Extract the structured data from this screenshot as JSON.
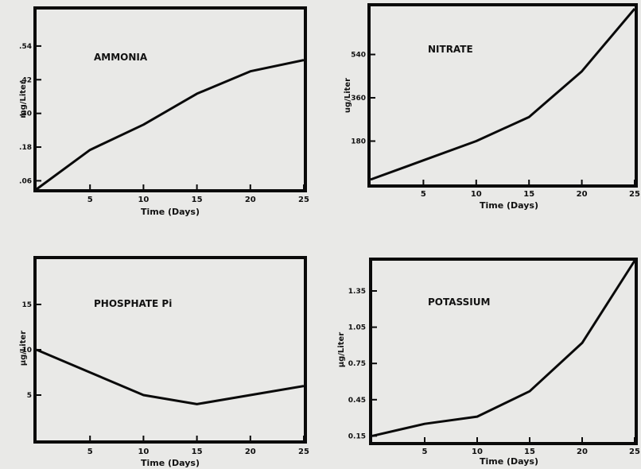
{
  "chart_data": [
    {
      "type": "line",
      "title": "AMMONIA",
      "xlabel": "Time (Days)",
      "ylabel": "mg/Liter",
      "x_ticks": [
        5,
        10,
        15,
        20,
        25
      ],
      "y_ticks": [
        ".06",
        ".18",
        ".30",
        ".42",
        ".54"
      ],
      "xlim": [
        0,
        25
      ],
      "ylim": [
        0.03,
        0.67
      ],
      "x": [
        0,
        5,
        10,
        15,
        20,
        25
      ],
      "values": [
        0.03,
        0.17,
        0.26,
        0.37,
        0.45,
        0.49
      ]
    },
    {
      "type": "line",
      "title": "NITRATE",
      "xlabel": "Time (Days)",
      "ylabel": "ug/Liter",
      "x_ticks": [
        5,
        10,
        15,
        20,
        25
      ],
      "y_ticks": [
        "180",
        "360",
        "540"
      ],
      "xlim": [
        0,
        25
      ],
      "ylim": [
        0,
        740
      ],
      "x": [
        0,
        5,
        10,
        15,
        20,
        25
      ],
      "values": [
        20,
        100,
        180,
        280,
        470,
        730
      ]
    },
    {
      "type": "line",
      "title": "PHOSPHATE Pi",
      "xlabel": "Time (Days)",
      "ylabel": "µg/Liter",
      "x_ticks": [
        5,
        10,
        15,
        20,
        25
      ],
      "y_ticks": [
        "5",
        "10",
        "15"
      ],
      "xlim": [
        0,
        25
      ],
      "ylim": [
        0,
        20
      ],
      "x": [
        0,
        5,
        10,
        15,
        20,
        25
      ],
      "values": [
        10,
        7.5,
        5,
        4,
        5,
        6
      ]
    },
    {
      "type": "line",
      "title": "POTASSIUM",
      "xlabel": "Time (Days)",
      "ylabel": "µg/Liter",
      "x_ticks": [
        5,
        10,
        15,
        20,
        25
      ],
      "y_ticks": [
        "0.15",
        "0.45",
        "0.75",
        "1.05",
        "1.35"
      ],
      "xlim": [
        0,
        25
      ],
      "ylim": [
        0.1,
        1.6
      ],
      "x": [
        0,
        5,
        10,
        15,
        20,
        25
      ],
      "values": [
        0.15,
        0.25,
        0.31,
        0.52,
        0.92,
        1.6
      ]
    }
  ]
}
